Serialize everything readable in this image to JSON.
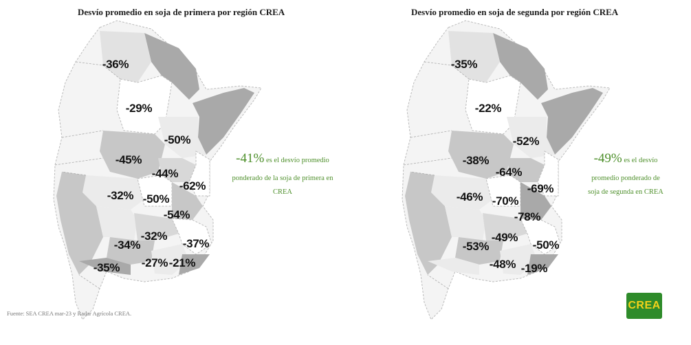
{
  "maps": [
    {
      "title": "Desvío promedio en soja de primera por región CREA",
      "regions": [
        "-36%",
        "-29%",
        "-50%",
        "-45%",
        "-44%",
        "-62%",
        "-32%",
        "-50%",
        "-54%",
        "-32%",
        "-34%",
        "-37%",
        "-27%",
        "-21%",
        "-35%"
      ]
    },
    {
      "title": "Desvío promedio en soja de segunda por región CREA",
      "regions": [
        "-35%",
        "-22%",
        "-52%",
        "-38%",
        "-64%",
        "-69%",
        "-46%",
        "-70%",
        "-78%",
        "-49%",
        "-53%",
        "-50%",
        "-48%",
        "-19%"
      ]
    }
  ],
  "summary_left": {
    "pct": "-41%",
    "text1": "es el desvío promedio",
    "text2": "ponderado de la soja de primera en",
    "text3": "CREA"
  },
  "summary_right": {
    "pct": "-49%",
    "text1": "es el desvío",
    "text2": "promedio ponderado de",
    "text3": "soja de segunda en CREA"
  },
  "source": "Fuente: SEA CREA mar-23 y Radar Agrícola CREA.",
  "logo_text": "CREA",
  "colors": {
    "dark_region": "#a9a9a9",
    "mid_region": "#cfcfcf",
    "light_region": "#ebebeb",
    "accent_green": "#4d8f2a",
    "logo_bg": "#2e8b2a",
    "logo_text": "#f4d21a"
  }
}
